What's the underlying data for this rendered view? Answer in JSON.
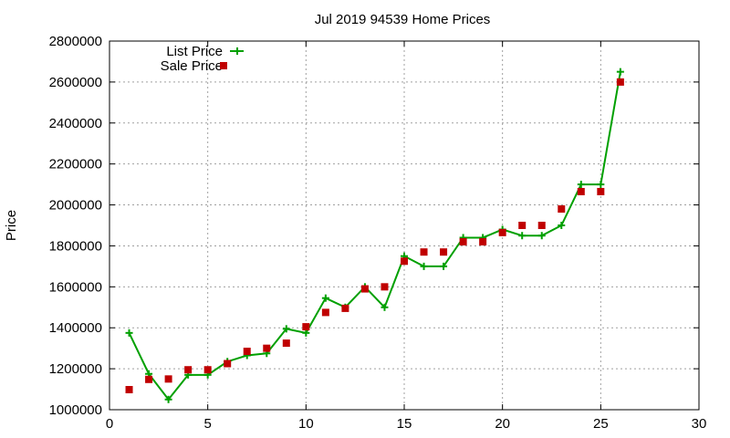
{
  "chart_data": {
    "type": "line",
    "title": "Jul 2019 94539 Home Prices",
    "xlabel": "",
    "ylabel": "Price",
    "xlim": [
      0,
      30
    ],
    "ylim": [
      1000000,
      2800000
    ],
    "xticks": [
      0,
      5,
      10,
      15,
      20,
      25,
      30
    ],
    "yticks": [
      1000000,
      1200000,
      1400000,
      1600000,
      1800000,
      2000000,
      2200000,
      2400000,
      2600000,
      2800000
    ],
    "grid": true,
    "legend": "top-left",
    "series": [
      {
        "name": "List Price",
        "type": "line",
        "marker": "plus",
        "color": "#00a000",
        "x": [
          1,
          2,
          3,
          4,
          5,
          6,
          7,
          8,
          9,
          10,
          11,
          12,
          13,
          14,
          15,
          16,
          17,
          18,
          19,
          20,
          21,
          22,
          23,
          24,
          25,
          26
        ],
        "y": [
          1375000,
          1175000,
          1050000,
          1170000,
          1170000,
          1235000,
          1265000,
          1275000,
          1395000,
          1375000,
          1545000,
          1500000,
          1600000,
          1500000,
          1750000,
          1700000,
          1700000,
          1840000,
          1840000,
          1880000,
          1850000,
          1850000,
          1900000,
          2100000,
          2100000,
          2650000
        ]
      },
      {
        "name": "Sale Price",
        "type": "scatter",
        "marker": "square",
        "color": "#c00000",
        "x": [
          1,
          2,
          3,
          4,
          5,
          6,
          7,
          8,
          9,
          10,
          11,
          12,
          13,
          14,
          15,
          16,
          17,
          18,
          19,
          20,
          21,
          22,
          23,
          24,
          25,
          26
        ],
        "y": [
          1098000,
          1148000,
          1150000,
          1195000,
          1195000,
          1225000,
          1285000,
          1300000,
          1325000,
          1405000,
          1475000,
          1495000,
          1590000,
          1600000,
          1725000,
          1770000,
          1770000,
          1820000,
          1820000,
          1865000,
          1900000,
          1900000,
          1980000,
          2065000,
          2065000,
          2600000
        ]
      }
    ]
  }
}
